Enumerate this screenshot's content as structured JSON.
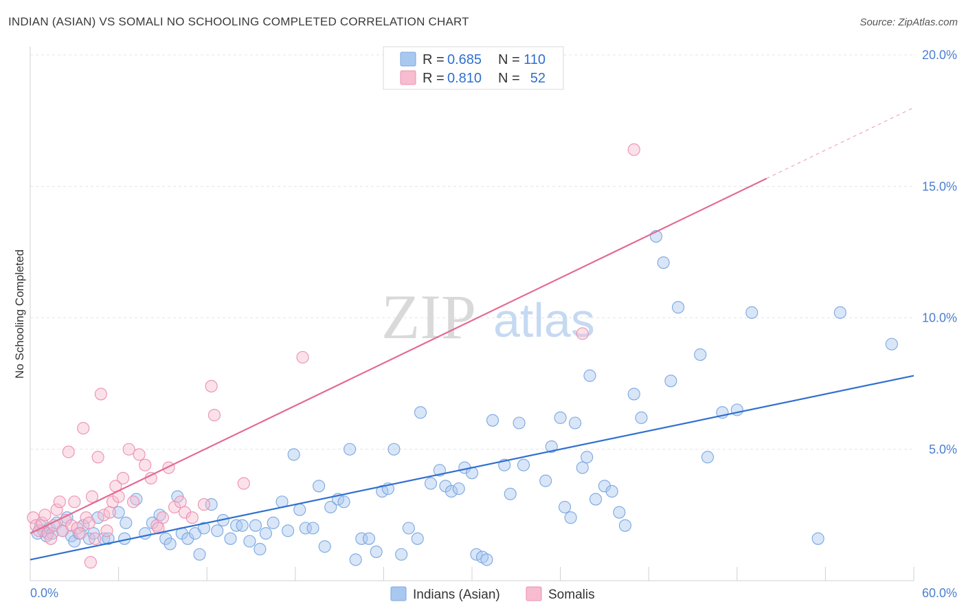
{
  "header": {
    "title": "INDIAN (ASIAN) VS SOMALI NO SCHOOLING COMPLETED CORRELATION CHART",
    "source": "Source: ZipAtlas.com"
  },
  "watermark": {
    "zip": "ZIP",
    "atlas": "atlas"
  },
  "legend": {
    "rows": [
      {
        "r_label": "R = ",
        "r_value": "0.685",
        "n_label": "N = ",
        "n_value": "110",
        "color": "#a9c8f0",
        "stroke": "#7aa6e0"
      },
      {
        "r_label": "R = ",
        "r_value": "0.810",
        "n_label": "N = ",
        "n_value": "52",
        "color": "#f7bcd0",
        "stroke": "#ec8fb0"
      }
    ]
  },
  "bottom_legend": [
    "Indians (Asian)",
    "Somalis"
  ],
  "chart_data": {
    "type": "scatter",
    "title": "INDIAN (ASIAN) VS SOMALI NO SCHOOLING COMPLETED CORRELATION CHART",
    "xlabel": "",
    "ylabel": "No Schooling Completed",
    "xlim": [
      0,
      60
    ],
    "ylim": [
      0,
      20
    ],
    "x_tick_labels": [
      "0.0%",
      "60.0%"
    ],
    "y_tick_labels": [
      "5.0%",
      "10.0%",
      "15.0%",
      "20.0%"
    ],
    "y_ticks": [
      5,
      10,
      15,
      20
    ],
    "grid": true,
    "legend_position": "top-center",
    "series": [
      {
        "name": "Indians (Asian)",
        "color": "#7aa6e0",
        "line_color": "#2f6fd0",
        "R": 0.685,
        "N": 110,
        "trend": {
          "x0": 0,
          "y0": 0.8,
          "x1": 60,
          "y1": 7.8
        },
        "points": [
          [
            0.5,
            1.8
          ],
          [
            0.7,
            2.1
          ],
          [
            0.9,
            1.9
          ],
          [
            1.1,
            1.7
          ],
          [
            1.3,
            2.0
          ],
          [
            1.5,
            1.8
          ],
          [
            1.8,
            2.2
          ],
          [
            2.2,
            1.9
          ],
          [
            2.5,
            2.4
          ],
          [
            2.8,
            1.7
          ],
          [
            3.0,
            1.5
          ],
          [
            3.3,
            1.8
          ],
          [
            3.6,
            2.1
          ],
          [
            4.0,
            1.6
          ],
          [
            4.3,
            1.8
          ],
          [
            4.6,
            2.4
          ],
          [
            5.0,
            1.6
          ],
          [
            5.3,
            1.6
          ],
          [
            6.0,
            2.6
          ],
          [
            6.5,
            2.2
          ],
          [
            7.2,
            3.1
          ],
          [
            7.8,
            1.8
          ],
          [
            8.3,
            2.2
          ],
          [
            8.8,
            2.5
          ],
          [
            9.2,
            1.6
          ],
          [
            9.5,
            1.4
          ],
          [
            10.0,
            3.2
          ],
          [
            10.3,
            1.8
          ],
          [
            10.7,
            1.6
          ],
          [
            11.2,
            1.8
          ],
          [
            11.5,
            1.0
          ],
          [
            11.8,
            2.0
          ],
          [
            12.3,
            2.9
          ],
          [
            12.7,
            1.9
          ],
          [
            13.1,
            2.3
          ],
          [
            13.6,
            1.6
          ],
          [
            14.0,
            2.1
          ],
          [
            14.4,
            2.1
          ],
          [
            14.9,
            1.5
          ],
          [
            15.3,
            2.1
          ],
          [
            15.6,
            1.2
          ],
          [
            16.0,
            1.8
          ],
          [
            16.5,
            2.2
          ],
          [
            17.1,
            3.0
          ],
          [
            17.5,
            1.9
          ],
          [
            17.9,
            4.8
          ],
          [
            18.3,
            2.7
          ],
          [
            18.7,
            2.0
          ],
          [
            19.2,
            2.0
          ],
          [
            19.6,
            3.6
          ],
          [
            20.0,
            1.3
          ],
          [
            20.4,
            2.8
          ],
          [
            20.9,
            3.1
          ],
          [
            21.3,
            3.0
          ],
          [
            21.7,
            5.0
          ],
          [
            22.1,
            0.8
          ],
          [
            22.5,
            1.6
          ],
          [
            23.0,
            1.6
          ],
          [
            23.5,
            1.1
          ],
          [
            23.9,
            3.4
          ],
          [
            24.3,
            3.5
          ],
          [
            24.7,
            5.0
          ],
          [
            25.2,
            1.0
          ],
          [
            25.7,
            2.0
          ],
          [
            26.3,
            1.6
          ],
          [
            26.5,
            6.4
          ],
          [
            27.2,
            3.7
          ],
          [
            27.8,
            4.2
          ],
          [
            28.2,
            3.6
          ],
          [
            28.6,
            3.4
          ],
          [
            29.1,
            3.5
          ],
          [
            29.5,
            4.3
          ],
          [
            30.0,
            4.1
          ],
          [
            30.3,
            1.0
          ],
          [
            30.7,
            0.9
          ],
          [
            31.0,
            0.8
          ],
          [
            31.4,
            6.1
          ],
          [
            32.2,
            4.4
          ],
          [
            32.6,
            3.3
          ],
          [
            33.2,
            6.0
          ],
          [
            33.5,
            4.4
          ],
          [
            35.0,
            3.8
          ],
          [
            35.4,
            5.1
          ],
          [
            36.0,
            6.2
          ],
          [
            36.3,
            2.8
          ],
          [
            36.7,
            2.4
          ],
          [
            37.0,
            6.0
          ],
          [
            37.5,
            4.3
          ],
          [
            37.8,
            4.7
          ],
          [
            38.0,
            7.8
          ],
          [
            38.4,
            3.1
          ],
          [
            39.0,
            3.6
          ],
          [
            39.5,
            3.4
          ],
          [
            40.0,
            2.6
          ],
          [
            40.4,
            2.1
          ],
          [
            41.0,
            7.1
          ],
          [
            41.5,
            6.2
          ],
          [
            42.5,
            13.1
          ],
          [
            43.0,
            12.1
          ],
          [
            43.5,
            7.6
          ],
          [
            44.0,
            10.4
          ],
          [
            45.5,
            8.6
          ],
          [
            46.0,
            4.7
          ],
          [
            47.0,
            6.4
          ],
          [
            48.0,
            6.5
          ],
          [
            49.0,
            10.2
          ],
          [
            53.5,
            1.6
          ],
          [
            55.0,
            10.2
          ],
          [
            58.5,
            9.0
          ],
          [
            6.4,
            1.6
          ]
        ]
      },
      {
        "name": "Somalis",
        "color": "#ec8fb0",
        "line_color": "#e36a93",
        "R": 0.81,
        "N": 52,
        "trend": {
          "x0": 0,
          "y0": 1.8,
          "x1": 50,
          "y1": 15.3
        },
        "trend_dashed_to": {
          "x": 60,
          "y": 18.0
        },
        "points": [
          [
            0.2,
            2.4
          ],
          [
            0.4,
            2.1
          ],
          [
            0.6,
            1.9
          ],
          [
            0.8,
            2.2
          ],
          [
            1.0,
            2.5
          ],
          [
            1.2,
            1.8
          ],
          [
            1.4,
            1.6
          ],
          [
            1.6,
            2.1
          ],
          [
            1.8,
            2.7
          ],
          [
            2.0,
            3.0
          ],
          [
            2.2,
            1.9
          ],
          [
            2.4,
            2.3
          ],
          [
            2.6,
            4.9
          ],
          [
            2.8,
            2.1
          ],
          [
            3.0,
            3.0
          ],
          [
            3.2,
            2.0
          ],
          [
            3.4,
            1.8
          ],
          [
            3.6,
            5.8
          ],
          [
            3.8,
            2.4
          ],
          [
            4.0,
            2.2
          ],
          [
            4.2,
            3.2
          ],
          [
            4.4,
            1.6
          ],
          [
            4.6,
            4.7
          ],
          [
            4.8,
            7.1
          ],
          [
            5.0,
            2.5
          ],
          [
            5.2,
            1.9
          ],
          [
            5.4,
            2.6
          ],
          [
            5.6,
            3.0
          ],
          [
            5.8,
            3.6
          ],
          [
            6.0,
            3.2
          ],
          [
            6.3,
            3.9
          ],
          [
            6.7,
            5.0
          ],
          [
            7.0,
            3.0
          ],
          [
            7.4,
            4.8
          ],
          [
            7.8,
            4.4
          ],
          [
            8.2,
            3.9
          ],
          [
            8.6,
            2.1
          ],
          [
            9.0,
            2.4
          ],
          [
            9.4,
            4.3
          ],
          [
            9.8,
            2.8
          ],
          [
            10.2,
            3.0
          ],
          [
            10.5,
            2.6
          ],
          [
            11.0,
            2.4
          ],
          [
            11.8,
            2.9
          ],
          [
            12.3,
            7.4
          ],
          [
            12.5,
            6.3
          ],
          [
            14.5,
            3.7
          ],
          [
            18.5,
            8.5
          ],
          [
            37.5,
            9.4
          ],
          [
            41.0,
            16.4
          ],
          [
            4.1,
            0.7
          ],
          [
            8.7,
            2.0
          ]
        ]
      }
    ]
  }
}
